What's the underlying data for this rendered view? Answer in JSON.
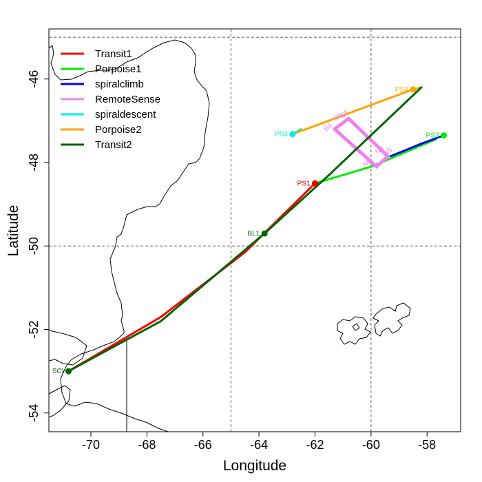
{
  "chart_data": {
    "type": "map",
    "title": "",
    "xlabel": "Longitude",
    "ylabel": "Latitude",
    "xlim": [
      -71.5,
      -56.8
    ],
    "ylim": [
      -54.45,
      -44.8
    ],
    "x_ticks": [
      -70,
      -68,
      -66,
      -64,
      -62,
      -60,
      -58
    ],
    "x_tick_labels": [
      "-70",
      "-68",
      "-66",
      "-64",
      "-62",
      "-60",
      "-58"
    ],
    "y_ticks": [
      -54,
      -52,
      -50,
      -48,
      -46
    ],
    "y_tick_labels": [
      "-54",
      "-52",
      "-50",
      "-48",
      "-46"
    ],
    "grid_lines": {
      "longitude": [
        -65,
        -60
      ],
      "latitude": [
        -50,
        -45
      ]
    },
    "legend": {
      "position": "top-left"
    },
    "series": [
      {
        "name": "Transit1",
        "color": "#ff0000",
        "points": [
          [
            -70.8,
            -53.0
          ],
          [
            -67.5,
            -51.7
          ],
          [
            -64.5,
            -50.15
          ],
          [
            -62.0,
            -48.5
          ]
        ]
      },
      {
        "name": "Porpoise1",
        "color": "#00ee00",
        "points": [
          [
            -62.0,
            -48.5
          ],
          [
            -60.0,
            -48.1
          ],
          [
            -57.7,
            -47.45
          ]
        ]
      },
      {
        "name": "spiralclimb",
        "color": "#0000ee",
        "points": [
          [
            -59.3,
            -47.85
          ],
          [
            -58.2,
            -47.55
          ],
          [
            -57.4,
            -47.35
          ]
        ]
      },
      {
        "name": "RemoteSense",
        "color": "#ee82ee",
        "points": [
          [
            -61.3,
            -47.2
          ],
          [
            -60.8,
            -46.95
          ],
          [
            -59.4,
            -47.85
          ],
          [
            -59.8,
            -48.1
          ],
          [
            -61.3,
            -47.2
          ]
        ]
      },
      {
        "name": "spiraldescent",
        "color": "#00eeee",
        "points": [
          [
            -62.8,
            -47.32
          ],
          [
            -62.5,
            -47.2
          ]
        ]
      },
      {
        "name": "Porpoise2",
        "color": "#ffa500",
        "points": [
          [
            -62.8,
            -47.32
          ],
          [
            -58.5,
            -46.25
          ],
          [
            -58.2,
            -46.2
          ]
        ]
      },
      {
        "name": "Transit2",
        "color": "#006400",
        "points": [
          [
            -58.2,
            -46.2
          ],
          [
            -61.5,
            -48.3
          ],
          [
            -63.8,
            -49.7
          ],
          [
            -67.5,
            -51.8
          ],
          [
            -70.8,
            -53.0
          ]
        ]
      }
    ],
    "waypoints": [
      {
        "label": "PS1",
        "lon": -62.0,
        "lat": -48.5,
        "color": "#ee0000"
      },
      {
        "label": "PS2",
        "lon": -57.4,
        "lat": -47.35,
        "color": "#00ee00"
      },
      {
        "label": "PS3",
        "lon": -62.8,
        "lat": -47.32,
        "color": "#00eeee"
      },
      {
        "label": "PS4",
        "lon": -58.5,
        "lat": -46.25,
        "color": "#ffa500"
      },
      {
        "label": "BL1",
        "lon": -63.8,
        "lat": -49.7,
        "color": "#006400"
      },
      {
        "label": "SCI",
        "lon": -70.8,
        "lat": -53.0,
        "color": "#006400"
      }
    ],
    "remote_sense_labels": [
      {
        "label": "S6",
        "lon": -61.15,
        "lat": -46.95
      },
      {
        "label": "S5",
        "lon": -60.9,
        "lat": -46.88
      },
      {
        "label": "S4",
        "lon": -61.5,
        "lat": -47.2
      },
      {
        "label": "N4",
        "lon": -59.65,
        "lat": -47.75
      },
      {
        "label": "N5",
        "lon": -59.35,
        "lat": -47.78
      },
      {
        "label": "N6",
        "lon": -60.1,
        "lat": -48.05
      }
    ]
  }
}
